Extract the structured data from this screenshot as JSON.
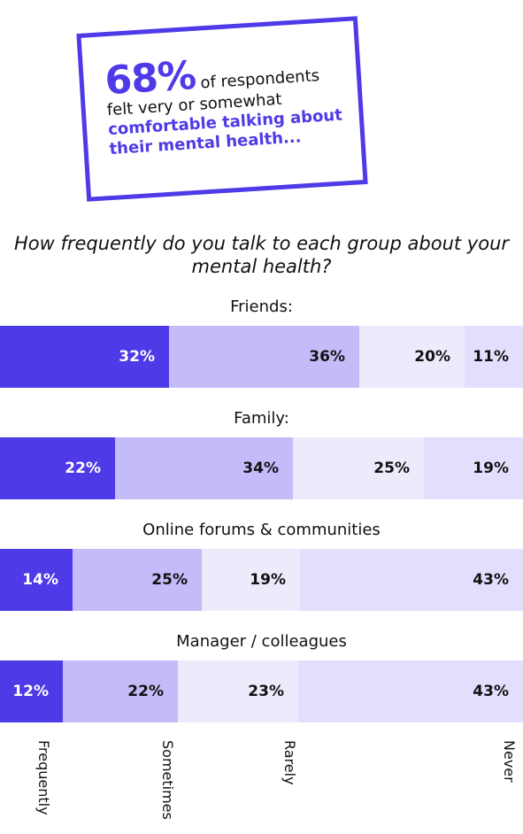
{
  "callout": {
    "stat": "68%",
    "lead_rest": "of respondents",
    "lead_line": "felt very or somewhat",
    "highlight_line1": "comfortable talking about",
    "highlight_line2": "their mental health..."
  },
  "question": "How frequently do you talk to each group about your mental health?",
  "colors": {
    "frequently": "#4f3ae8",
    "sometimes": "#c3bcf9",
    "rarely": "#ecebfc",
    "never": "#e2dffd",
    "accent": "#4f3ae8"
  },
  "chart_data": {
    "type": "bar",
    "stacked": true,
    "orientation": "horizontal",
    "categories": [
      "Friends:",
      "Family:",
      "Online forums & communities",
      "Manager / colleagues"
    ],
    "series": [
      {
        "name": "Frequently",
        "values": [
          32,
          22,
          14,
          12
        ]
      },
      {
        "name": "Sometimes",
        "values": [
          36,
          34,
          25,
          22
        ]
      },
      {
        "name": "Rarely",
        "values": [
          20,
          25,
          19,
          23
        ]
      },
      {
        "name": "Never",
        "values": [
          11,
          19,
          43,
          43
        ]
      }
    ],
    "value_labels": [
      [
        "32%",
        "36%",
        "20%",
        "11%"
      ],
      [
        "22%",
        "34%",
        "25%",
        "19%"
      ],
      [
        "14%",
        "25%",
        "19%",
        "43%"
      ],
      [
        "12%",
        "22%",
        "23%",
        "43%"
      ]
    ],
    "legend": [
      "Frequently",
      "Sometimes",
      "Rarely",
      "Never"
    ],
    "legend_placement": "bottom"
  }
}
